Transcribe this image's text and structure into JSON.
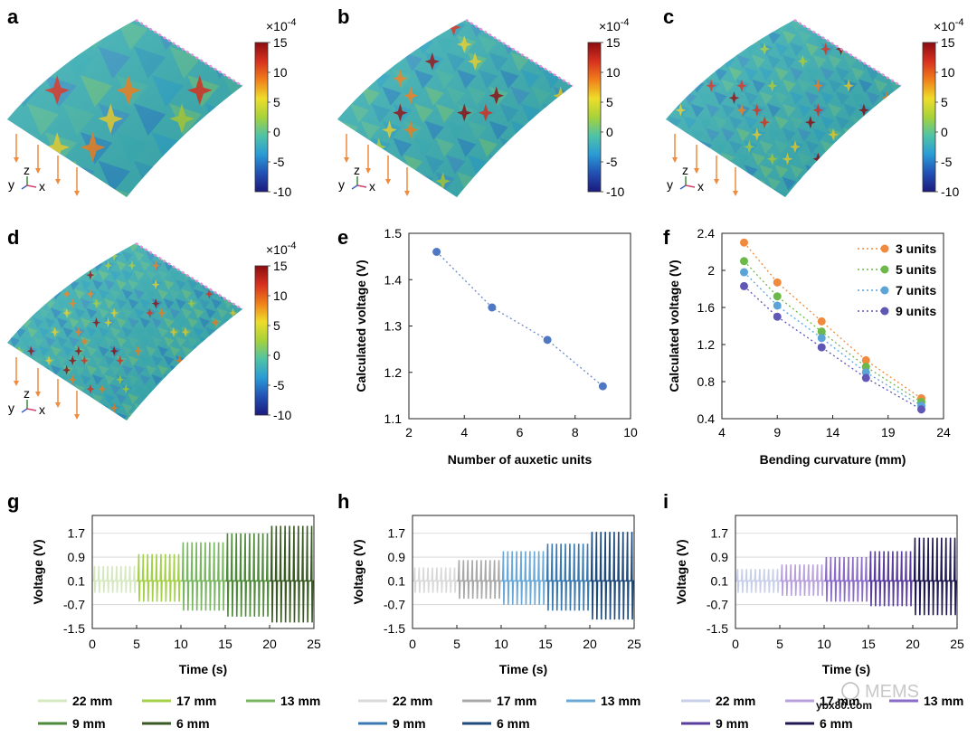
{
  "panels": {
    "a": {
      "letter": "a"
    },
    "b": {
      "letter": "b"
    },
    "c": {
      "letter": "c"
    },
    "d": {
      "letter": "d"
    },
    "e": {
      "letter": "e"
    },
    "f": {
      "letter": "f"
    },
    "g": {
      "letter": "g"
    },
    "h": {
      "letter": "h"
    },
    "i": {
      "letter": "i"
    }
  },
  "colorbar": {
    "exponent_label": "×10",
    "exponent": "-4",
    "ticks": [
      "15",
      "10",
      "5",
      "0",
      "-5",
      "-10"
    ],
    "colors": [
      "#8b0c10",
      "#d7301f",
      "#f07f1a",
      "#eedd2a",
      "#a6d23a",
      "#4fc3a6",
      "#2a9bd6",
      "#2250b4",
      "#1c1a7c"
    ]
  },
  "strain_maps": [
    {
      "panel": "a",
      "cells": 3
    },
    {
      "panel": "b",
      "cells": 5
    },
    {
      "panel": "c",
      "cells": 7
    },
    {
      "panel": "d",
      "cells": 9
    }
  ],
  "axes_triad": {
    "y": "y",
    "z": "z",
    "x": "x"
  },
  "chart_data": [
    {
      "panel": "e",
      "type": "scatter",
      "xlabel": "Number of auxetic units",
      "ylabel": "Calculated voltage (V)",
      "xlim": [
        2,
        10
      ],
      "ylim": [
        1.1,
        1.5
      ],
      "xticks": [
        "2",
        "4",
        "6",
        "8",
        "10"
      ],
      "yticks": [
        "1.1",
        "1.2",
        "1.3",
        "1.4",
        "1.5"
      ],
      "x": [
        3,
        5,
        7,
        9
      ],
      "y": [
        1.46,
        1.34,
        1.27,
        1.17
      ],
      "color": "#4e78c4"
    },
    {
      "panel": "f",
      "type": "line",
      "xlabel": "Bending curvature (mm)",
      "ylabel": "Calculated voltage (V)",
      "xlim": [
        4,
        24
      ],
      "ylim": [
        0.4,
        2.4
      ],
      "xticks": [
        "4",
        "9",
        "14",
        "19",
        "24"
      ],
      "yticks": [
        "0.4",
        "0.8",
        "1.2",
        "1.6",
        "2",
        "2.4"
      ],
      "x": [
        6,
        9,
        13,
        17,
        22
      ],
      "series": [
        {
          "name": "3 units",
          "color": "#f08a3c",
          "values": [
            2.3,
            1.87,
            1.45,
            1.03,
            0.62
          ]
        },
        {
          "name": "5 units",
          "color": "#6cb84a",
          "values": [
            2.1,
            1.72,
            1.34,
            0.96,
            0.58
          ]
        },
        {
          "name": "7 units",
          "color": "#5ba4d8",
          "values": [
            1.98,
            1.62,
            1.27,
            0.9,
            0.54
          ]
        },
        {
          "name": "9 units",
          "color": "#5f56b6",
          "values": [
            1.83,
            1.5,
            1.17,
            0.84,
            0.5
          ]
        }
      ]
    },
    {
      "panel": "g",
      "type": "line",
      "xlabel": "Time (s)",
      "ylabel": "Voltage (V)",
      "xlim": [
        0,
        25
      ],
      "ylim": [
        -1.5,
        2.3
      ],
      "xticks": [
        "0",
        "5",
        "10",
        "15",
        "20",
        "25"
      ],
      "yticks": [
        "1.7",
        "0.9",
        "0.1",
        "-0.7",
        "-1.5"
      ],
      "segments": [
        {
          "name": "22 mm",
          "color": "#d5e8c0",
          "t": [
            0,
            5
          ],
          "amp_pos": 0.6,
          "amp_neg": -0.3
        },
        {
          "name": "17 mm",
          "color": "#a5d04a",
          "t": [
            5,
            10
          ],
          "amp_pos": 1.0,
          "amp_neg": -0.6
        },
        {
          "name": "13 mm",
          "color": "#78b660",
          "t": [
            10,
            15
          ],
          "amp_pos": 1.4,
          "amp_neg": -0.9
        },
        {
          "name": "9 mm",
          "color": "#4e8a3a",
          "t": [
            15,
            20
          ],
          "amp_pos": 1.7,
          "amp_neg": -1.1
        },
        {
          "name": "6 mm",
          "color": "#3a5a24",
          "t": [
            20,
            25
          ],
          "amp_pos": 1.95,
          "amp_neg": -1.3
        }
      ]
    },
    {
      "panel": "h",
      "type": "line",
      "xlabel": "Time (s)",
      "ylabel": "Voltage (V)",
      "xlim": [
        0,
        25
      ],
      "ylim": [
        -1.5,
        2.3
      ],
      "xticks": [
        "0",
        "5",
        "10",
        "15",
        "20",
        "25"
      ],
      "yticks": [
        "1.7",
        "0.9",
        "0.1",
        "-0.7",
        "-1.5"
      ],
      "segments": [
        {
          "name": "22 mm",
          "color": "#d9d9d9",
          "t": [
            0,
            5
          ],
          "amp_pos": 0.55,
          "amp_neg": -0.3
        },
        {
          "name": "17 mm",
          "color": "#a8a8a8",
          "t": [
            5,
            10
          ],
          "amp_pos": 0.8,
          "amp_neg": -0.5
        },
        {
          "name": "13 mm",
          "color": "#6aa8d8",
          "t": [
            10,
            15
          ],
          "amp_pos": 1.1,
          "amp_neg": -0.7
        },
        {
          "name": "9 mm",
          "color": "#3a78b0",
          "t": [
            15,
            20
          ],
          "amp_pos": 1.35,
          "amp_neg": -0.9
        },
        {
          "name": "6 mm",
          "color": "#1e4a7c",
          "t": [
            20,
            25
          ],
          "amp_pos": 1.75,
          "amp_neg": -1.2
        }
      ]
    },
    {
      "panel": "i",
      "type": "line",
      "xlabel": "Time (s)",
      "ylabel": "Voltage (V)",
      "xlim": [
        0,
        25
      ],
      "ylim": [
        -1.5,
        2.3
      ],
      "xticks": [
        "0",
        "5",
        "10",
        "15",
        "20",
        "25"
      ],
      "yticks": [
        "1.7",
        "0.9",
        "0.1",
        "-0.7",
        "-1.5"
      ],
      "segments": [
        {
          "name": "22 mm",
          "color": "#c8cfea",
          "t": [
            0,
            5
          ],
          "amp_pos": 0.5,
          "amp_neg": -0.3
        },
        {
          "name": "17 mm",
          "color": "#b8a0dc",
          "t": [
            5,
            10
          ],
          "amp_pos": 0.65,
          "amp_neg": -0.4
        },
        {
          "name": "13 mm",
          "color": "#8a6cc8",
          "t": [
            10,
            15
          ],
          "amp_pos": 0.9,
          "amp_neg": -0.6
        },
        {
          "name": "9 mm",
          "color": "#5a3c9c",
          "t": [
            15,
            20
          ],
          "amp_pos": 1.1,
          "amp_neg": -0.75
        },
        {
          "name": "6 mm",
          "color": "#1f1850",
          "t": [
            20,
            25
          ],
          "amp_pos": 1.55,
          "amp_neg": -1.05
        }
      ]
    }
  ],
  "watermark": {
    "brand": "MEMS",
    "site": "ybx80.com"
  }
}
